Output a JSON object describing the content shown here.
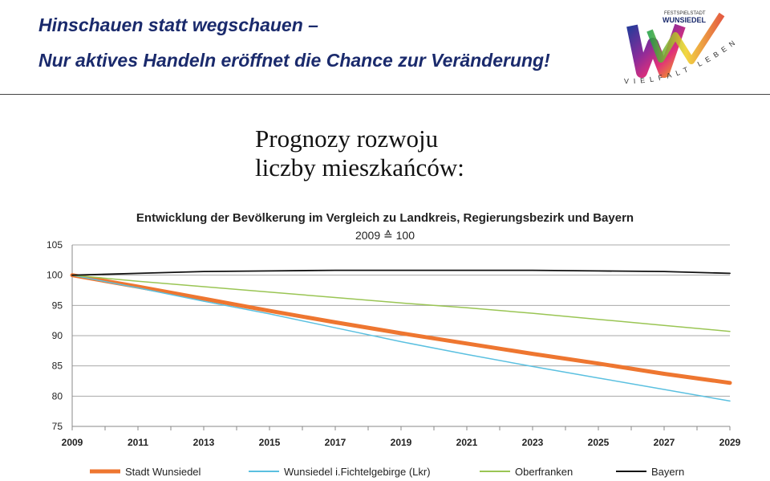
{
  "header": {
    "line1": "Hinschauen statt wegschauen –",
    "line2": "Nur aktives Handeln eröffnet die Chance zur Veränderung!"
  },
  "logo": {
    "top_text": "FESTSPIELSTADT",
    "name": "WUNSIEDEL",
    "arc_text": "VIELFALT LEBEN"
  },
  "slide_title": {
    "line1": "Prognozy rozwoju",
    "line2": "liczby mieszkańców:"
  },
  "chart_data": {
    "type": "line",
    "title": "Entwicklung der Bevölkerung im Vergleich zu Landkreis, Regierungsbezirk und Bayern",
    "subtitle": "2009 ≙ 100",
    "x": [
      2009,
      2011,
      2013,
      2015,
      2017,
      2019,
      2021,
      2023,
      2025,
      2027,
      2029
    ],
    "x_tick_labels": [
      "2009",
      "2011",
      "2013",
      "2015",
      "2017",
      "2019",
      "2021",
      "2023",
      "2025",
      "2027",
      "2029"
    ],
    "ylim": [
      75,
      105
    ],
    "y_ticks": [
      75,
      80,
      85,
      90,
      95,
      100,
      105
    ],
    "grid": true,
    "legend_position": "bottom",
    "series": [
      {
        "name": "Stadt Wunsiedel",
        "color": "#ee7630",
        "width": 5,
        "values": [
          100,
          98.1,
          96.1,
          94.1,
          92.2,
          90.4,
          88.7,
          87.0,
          85.4,
          83.7,
          82.2
        ]
      },
      {
        "name": "Wunsiedel i.Fichtelgebirge (Lkr)",
        "color": "#5bc0e0",
        "width": 1.5,
        "values": [
          100,
          97.9,
          95.7,
          93.6,
          91.3,
          89.0,
          86.9,
          84.9,
          83.0,
          81.1,
          79.2
        ]
      },
      {
        "name": "Oberfranken",
        "color": "#9ac554",
        "width": 1.5,
        "values": [
          100,
          99.0,
          98.1,
          97.2,
          96.3,
          95.4,
          94.6,
          93.7,
          92.7,
          91.7,
          90.7
        ]
      },
      {
        "name": "Bayern",
        "color": "#111111",
        "width": 1.8,
        "values": [
          100,
          100.3,
          100.6,
          100.7,
          100.8,
          100.8,
          100.8,
          100.8,
          100.7,
          100.6,
          100.3
        ]
      }
    ]
  }
}
